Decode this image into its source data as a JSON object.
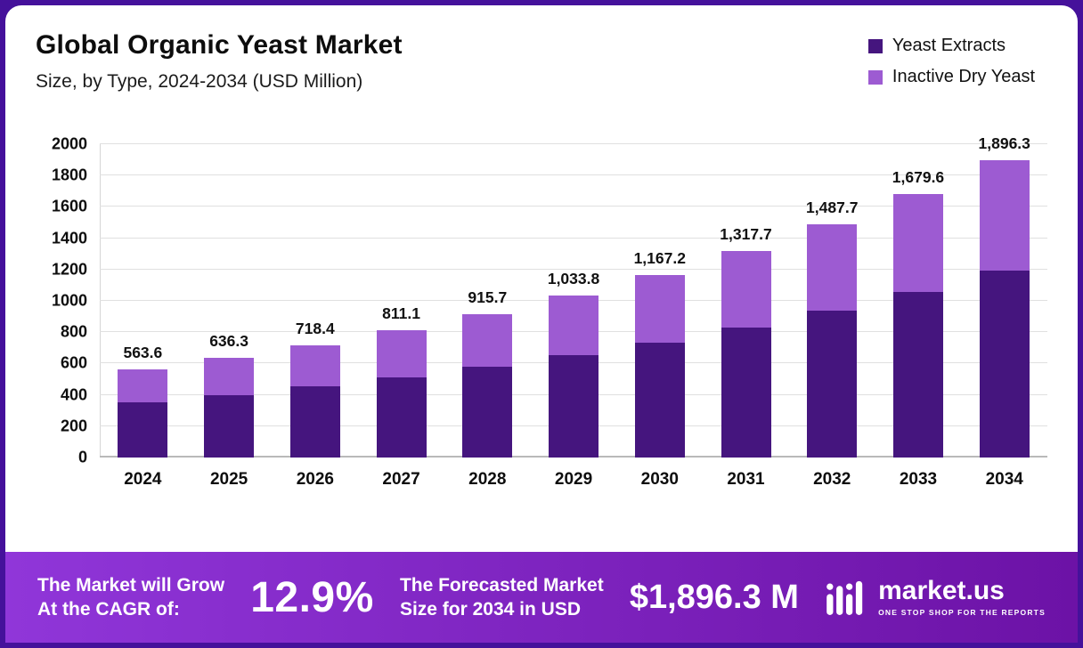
{
  "header": {
    "title": "Global Organic Yeast Market",
    "subtitle": "Size, by Type, 2024-2034 (USD Million)"
  },
  "colors": {
    "yeast_extracts": "#45157E",
    "inactive_dry_yeast": "#9D5BD2",
    "frame": "#45119B",
    "footer_gradient_start": "#9036D9",
    "footer_gradient_end": "#6C12A6"
  },
  "chart_data": {
    "type": "bar",
    "stacked": true,
    "title": "Global Organic Yeast Market Size, by Type, 2024-2034 (USD Million)",
    "categories": [
      "2024",
      "2025",
      "2026",
      "2027",
      "2028",
      "2029",
      "2030",
      "2031",
      "2032",
      "2033",
      "2034"
    ],
    "series": [
      {
        "name": "Yeast Extracts",
        "color": "#45157E",
        "values": [
          355,
          400,
          453,
          511,
          577,
          651,
          735,
          830,
          937,
          1058,
          1195
        ]
      },
      {
        "name": "Inactive Dry Yeast",
        "color": "#9D5BD2",
        "values": [
          208.6,
          236.3,
          265.4,
          300.1,
          338.7,
          382.8,
          432.2,
          487.7,
          550.7,
          621.6,
          701.3
        ]
      }
    ],
    "totals": [
      563.6,
      636.3,
      718.4,
      811.1,
      915.7,
      1033.8,
      1167.2,
      1317.7,
      1487.7,
      1679.6,
      1896.3
    ],
    "total_labels": [
      "563.6",
      "636.3",
      "718.4",
      "811.1",
      "915.7",
      "1,033.8",
      "1,167.2",
      "1,317.7",
      "1,487.7",
      "1,679.6",
      "1,896.3"
    ],
    "ylim": [
      0,
      2000
    ],
    "yticks": [
      0,
      200,
      400,
      600,
      800,
      1000,
      1200,
      1400,
      1600,
      1800,
      2000
    ],
    "grid": true,
    "legend_position": "top-right"
  },
  "footer": {
    "cagr_label_line1": "The Market will Grow",
    "cagr_label_line2": "At the CAGR of:",
    "cagr_value": "12.9%",
    "forecast_label_line1": "The Forecasted Market",
    "forecast_label_line2": "Size for 2034 in USD",
    "forecast_value": "$1,896.3 M",
    "brand_name": "market.us",
    "brand_tagline": "ONE STOP SHOP FOR THE REPORTS"
  }
}
